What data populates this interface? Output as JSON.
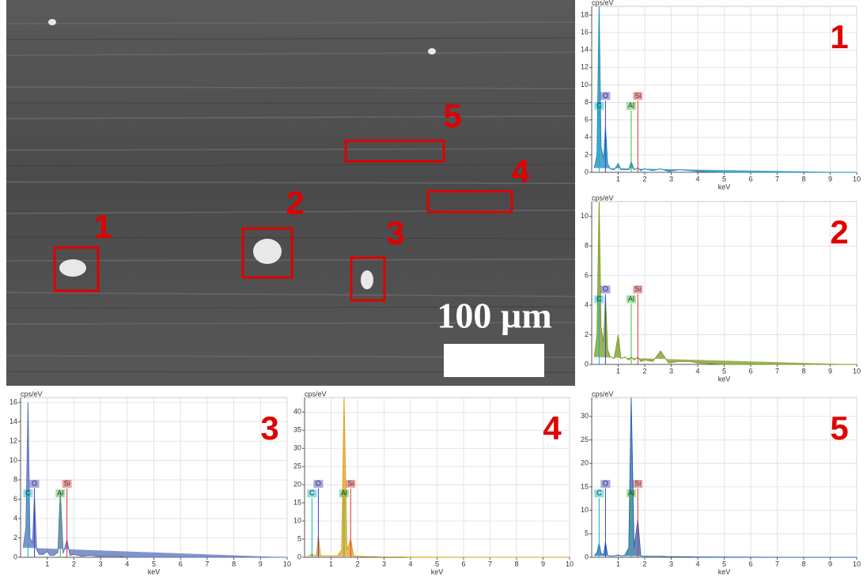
{
  "sem_image": {
    "regions": [
      {
        "label": "1"
      },
      {
        "label": "2"
      },
      {
        "label": "3"
      },
      {
        "label": "4"
      },
      {
        "label": "5"
      }
    ],
    "scale_bar": "100 µm"
  },
  "chart_data": [
    {
      "type": "area",
      "panel_label": "1",
      "ylabel": "cps/eV",
      "xlabel": "keV",
      "x": [
        0.1,
        0.2,
        0.28,
        0.35,
        0.45,
        0.52,
        0.6,
        0.7,
        0.85,
        1.0,
        1.1,
        1.25,
        1.4,
        1.49,
        1.6,
        1.74,
        1.85,
        2.0,
        2.3,
        2.6,
        2.9,
        3.3,
        3.7,
        4.0,
        5,
        6,
        7,
        8,
        9,
        10
      ],
      "series": [
        {
          "color": "#1a8ab8",
          "values": [
            0.5,
            2,
            19,
            3,
            1.5,
            5.2,
            1,
            0.4,
            0.3,
            1,
            0.3,
            0.3,
            0.3,
            1.2,
            0.3,
            0.5,
            0.2,
            0.4,
            0.2,
            0.4,
            0.1,
            0.3,
            0.2,
            0.1,
            0,
            0,
            0,
            0,
            0,
            0
          ]
        }
      ],
      "xlim": [
        0,
        10
      ],
      "xticks": [
        1,
        2,
        3,
        4,
        5,
        6,
        7,
        8,
        9,
        10
      ],
      "ylim": [
        0,
        19
      ],
      "yticks": [
        0,
        2,
        4,
        6,
        8,
        10,
        12,
        14,
        16,
        18
      ],
      "grid": true,
      "peak_labels": [
        {
          "label": "C",
          "energy": 0.28,
          "color": "#00b8c8"
        },
        {
          "label": "O",
          "energy": 0.52,
          "color": "#3c3cd0"
        },
        {
          "label": "Al",
          "energy": 1.49,
          "color": "#30c030"
        },
        {
          "label": "Si",
          "energy": 1.74,
          "color": "#e03030"
        }
      ]
    },
    {
      "type": "area",
      "panel_label": "2",
      "ylabel": "cps/eV",
      "xlabel": "keV",
      "x": [
        0.1,
        0.2,
        0.28,
        0.35,
        0.45,
        0.52,
        0.6,
        0.7,
        0.85,
        1.0,
        1.1,
        1.25,
        1.4,
        1.49,
        1.6,
        1.74,
        1.85,
        2.0,
        2.3,
        2.6,
        2.9,
        3.3,
        3.7,
        4.0,
        5,
        6,
        7,
        8,
        9,
        10
      ],
      "series": [
        {
          "color": "#7a9a20",
          "values": [
            0.5,
            2,
            11,
            2.5,
            1.5,
            4.6,
            1,
            0.5,
            0.4,
            2,
            0.4,
            0.5,
            0.3,
            0.5,
            0.3,
            0.5,
            0.2,
            0.3,
            0.2,
            0.9,
            0.1,
            0.2,
            0.2,
            0.1,
            0,
            0,
            0,
            0,
            0,
            0
          ]
        }
      ],
      "xlim": [
        0,
        10
      ],
      "xticks": [
        1,
        2,
        3,
        4,
        5,
        6,
        7,
        8,
        9,
        10
      ],
      "ylim": [
        0,
        11
      ],
      "yticks": [
        0,
        2,
        4,
        6,
        8,
        10
      ],
      "grid": true,
      "peak_labels": [
        {
          "label": "C",
          "energy": 0.28,
          "color": "#00b8c8"
        },
        {
          "label": "O",
          "energy": 0.52,
          "color": "#3c3cd0"
        },
        {
          "label": "Al",
          "energy": 1.49,
          "color": "#30c030"
        },
        {
          "label": "Si",
          "energy": 1.74,
          "color": "#e03030"
        }
      ]
    },
    {
      "type": "area",
      "panel_label": "3",
      "ylabel": "cps/eV",
      "xlabel": "keV",
      "x": [
        0.1,
        0.2,
        0.28,
        0.35,
        0.45,
        0.52,
        0.6,
        0.7,
        0.85,
        1.0,
        1.1,
        1.25,
        1.4,
        1.49,
        1.6,
        1.74,
        1.85,
        2.0,
        2.3,
        2.6,
        2.9,
        3.3,
        3.7,
        4.0,
        5,
        6,
        7,
        8,
        9,
        10
      ],
      "series": [
        {
          "color": "#5a70b8",
          "values": [
            1,
            3,
            16,
            2,
            1.5,
            6.3,
            0.8,
            0.3,
            0.3,
            0.6,
            0.2,
            0.2,
            0.5,
            6.8,
            0.4,
            1.8,
            0.2,
            0.3,
            0.1,
            0.2,
            0.1,
            0.1,
            0.1,
            0,
            0,
            0,
            0,
            0,
            0,
            0
          ]
        }
      ],
      "xlim": [
        0,
        10
      ],
      "xticks": [
        1,
        2,
        3,
        4,
        5,
        6,
        7,
        8,
        9,
        10
      ],
      "ylim": [
        0,
        16.5
      ],
      "yticks": [
        0,
        2,
        4,
        6,
        8,
        10,
        12,
        14,
        16
      ],
      "grid": true,
      "peak_labels": [
        {
          "label": "C",
          "energy": 0.28,
          "color": "#00b8c8"
        },
        {
          "label": "O",
          "energy": 0.52,
          "color": "#3c3cd0"
        },
        {
          "label": "Al",
          "energy": 1.49,
          "color": "#30c030"
        },
        {
          "label": "Si",
          "energy": 1.74,
          "color": "#e03030"
        }
      ]
    },
    {
      "type": "area",
      "panel_label": "4",
      "ylabel": "cps/eV",
      "xlabel": "keV",
      "x": [
        0.1,
        0.2,
        0.28,
        0.35,
        0.45,
        0.52,
        0.6,
        0.7,
        0.85,
        1.0,
        1.1,
        1.25,
        1.4,
        1.49,
        1.6,
        1.74,
        1.85,
        2.0,
        2.3,
        2.6,
        2.9,
        3.3,
        3.7,
        4.0,
        5,
        6,
        7,
        8,
        9,
        10
      ],
      "series": [
        {
          "color": "#e0a020",
          "values": [
            0.3,
            0.5,
            1,
            0.5,
            0.5,
            6,
            0.5,
            0.4,
            0.4,
            0.4,
            0.4,
            0.5,
            2,
            44,
            2,
            5,
            0.4,
            0.3,
            0.2,
            0.2,
            0.1,
            0.1,
            0.1,
            0,
            0,
            0,
            0,
            0,
            0,
            0
          ]
        }
      ],
      "xlim": [
        0,
        10
      ],
      "xticks": [
        1,
        2,
        3,
        4,
        5,
        6,
        7,
        8,
        9,
        10
      ],
      "ylim": [
        0,
        44
      ],
      "yticks": [
        0,
        5,
        10,
        15,
        20,
        25,
        30,
        35,
        40
      ],
      "grid": true,
      "peak_labels": [
        {
          "label": "C",
          "energy": 0.28,
          "color": "#00b8c8"
        },
        {
          "label": "O",
          "energy": 0.52,
          "color": "#3c3cd0"
        },
        {
          "label": "Al",
          "energy": 1.49,
          "color": "#30c030"
        },
        {
          "label": "Si",
          "energy": 1.74,
          "color": "#e03030"
        }
      ]
    },
    {
      "type": "area",
      "panel_label": "5",
      "ylabel": "cps/eV",
      "xlabel": "keV",
      "x": [
        0.1,
        0.2,
        0.28,
        0.35,
        0.45,
        0.52,
        0.6,
        0.7,
        0.85,
        1.0,
        1.1,
        1.25,
        1.4,
        1.49,
        1.6,
        1.74,
        1.85,
        2.0,
        2.3,
        2.6,
        2.9,
        3.3,
        3.7,
        4.0,
        5,
        6,
        7,
        8,
        9,
        10
      ],
      "series": [
        {
          "color": "#2a68b0",
          "values": [
            0.3,
            1,
            3,
            0.8,
            0.5,
            3.2,
            0.4,
            0.3,
            0.3,
            0.5,
            0.3,
            0.4,
            2,
            34,
            2,
            8,
            0.3,
            0.2,
            0.2,
            0.2,
            0.1,
            0.1,
            0.1,
            0,
            0,
            0,
            0,
            0,
            0,
            0
          ]
        }
      ],
      "xlim": [
        0,
        10
      ],
      "xticks": [
        1,
        2,
        3,
        4,
        5,
        6,
        7,
        8,
        9,
        10
      ],
      "ylim": [
        0,
        34
      ],
      "yticks": [
        0,
        5,
        10,
        15,
        20,
        25,
        30
      ],
      "grid": true,
      "peak_labels": [
        {
          "label": "C",
          "energy": 0.28,
          "color": "#00b8c8"
        },
        {
          "label": "O",
          "energy": 0.52,
          "color": "#3c3cd0"
        },
        {
          "label": "Al",
          "energy": 1.49,
          "color": "#30c030"
        },
        {
          "label": "Si",
          "energy": 1.74,
          "color": "#e03030"
        }
      ]
    }
  ]
}
